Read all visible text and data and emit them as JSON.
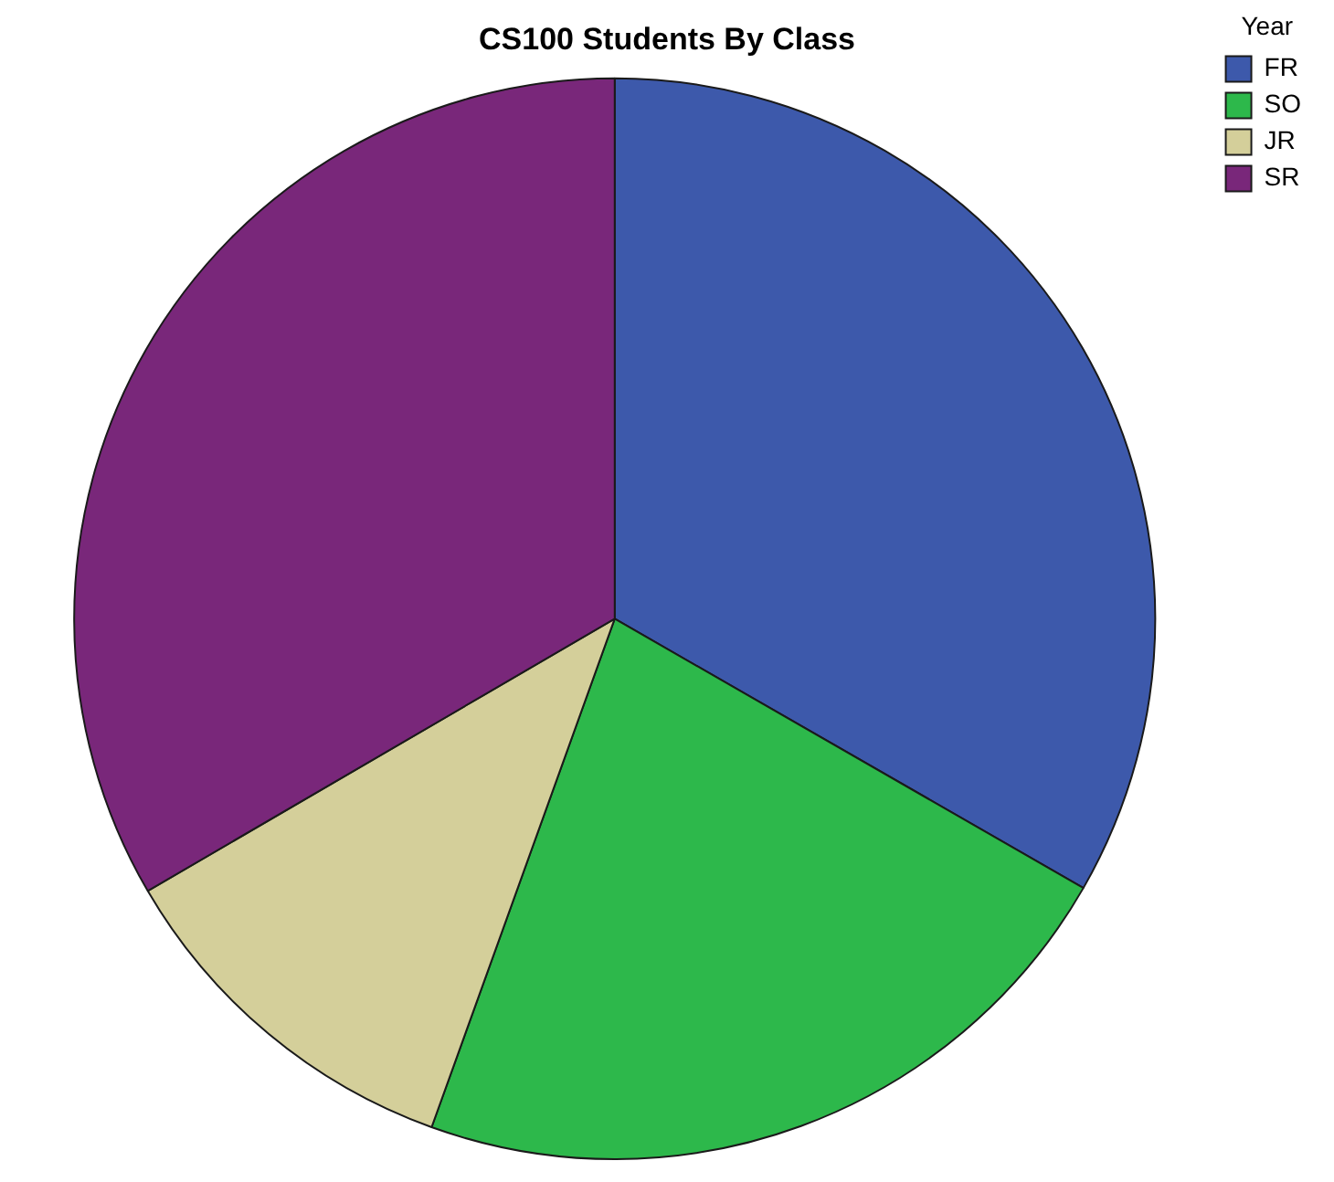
{
  "chart_data": {
    "type": "pie",
    "title": "CS100 Students By Class",
    "legend_title": "Year",
    "legend": "top right",
    "categories": [
      "FR",
      "SO",
      "JR",
      "SR"
    ],
    "values": [
      33.3,
      22.2,
      11.1,
      33.4
    ],
    "colors": [
      "#3d59ab",
      "#2db84b",
      "#d4cf9a",
      "#79277a"
    ]
  }
}
